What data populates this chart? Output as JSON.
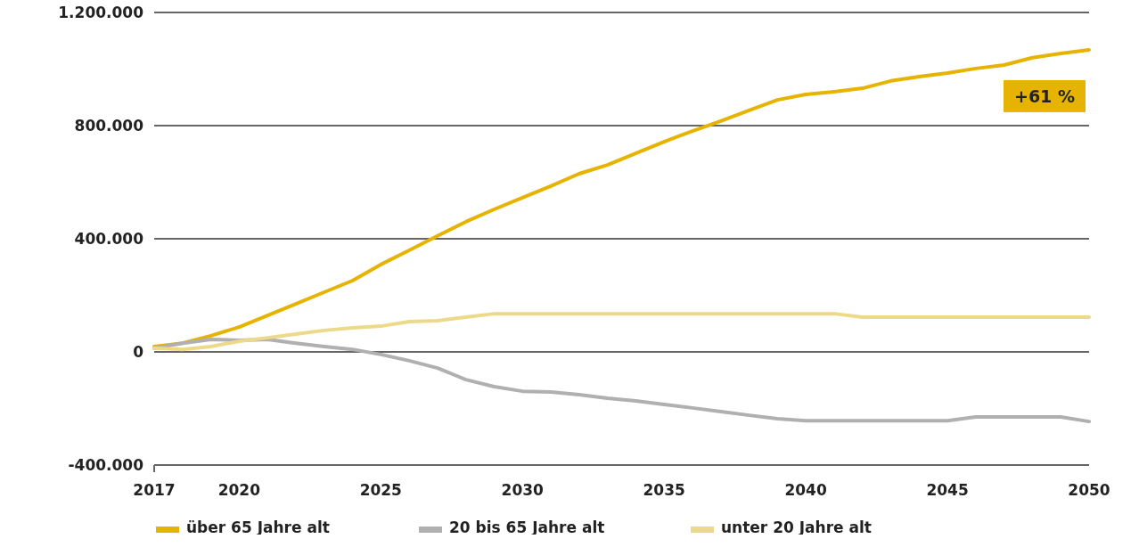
{
  "chart_data": {
    "type": "line",
    "xlim": [
      2017,
      2050
    ],
    "xticks": [
      2017,
      2020,
      2025,
      2030,
      2035,
      2040,
      2045,
      2050
    ],
    "ylim": [
      -400000,
      1200000
    ],
    "yticks": [
      {
        "value": -400000,
        "label": "-400.000"
      },
      {
        "value": 0,
        "label": "0"
      },
      {
        "value": 400000,
        "label": "400.000"
      },
      {
        "value": 800000,
        "label": "800.000"
      },
      {
        "value": 1200000,
        "label": "1.200.000"
      }
    ],
    "grid": "y",
    "legend": "bottom",
    "line_style": "solid",
    "marker": "none",
    "x": [
      2017,
      2018,
      2019,
      2020,
      2021,
      2022,
      2023,
      2024,
      2025,
      2026,
      2027,
      2028,
      2029,
      2030,
      2031,
      2032,
      2033,
      2034,
      2035,
      2036,
      2037,
      2038,
      2039,
      2040,
      2041,
      2042,
      2043,
      2044,
      2045,
      2046,
      2047,
      2048,
      2049,
      2050
    ],
    "series": [
      {
        "name": "über 65 Jahre alt",
        "color": "#e6b400",
        "values": [
          19000,
          31000,
          57000,
          88000,
          129000,
          170000,
          211000,
          252000,
          309000,
          359000,
          410000,
          460000,
          504000,
          545000,
          586000,
          630000,
          661000,
          702000,
          743000,
          781000,
          816000,
          854000,
          891000,
          910000,
          920000,
          932000,
          958000,
          973000,
          986000,
          1002000,
          1014000,
          1040000,
          1055000,
          1068000
        ]
      },
      {
        "name": "20 bis 65 Jahre alt",
        "color": "#b0b0b0",
        "values": [
          13000,
          31000,
          44000,
          41000,
          44000,
          31000,
          19000,
          9000,
          -9000,
          -31000,
          -57000,
          -98000,
          -123000,
          -139000,
          -142000,
          -151000,
          -164000,
          -173000,
          -186000,
          -198000,
          -211000,
          -224000,
          -236000,
          -243000,
          -243000,
          -243000,
          -243000,
          -243000,
          -243000,
          -230000,
          -230000,
          -230000,
          -230000,
          -246000
        ]
      },
      {
        "name": "unter 20 Jahre alt",
        "color": "#ecd98a",
        "values": [
          13000,
          9000,
          19000,
          38000,
          50000,
          63000,
          76000,
          85000,
          91000,
          107000,
          110000,
          123000,
          135000,
          135000,
          135000,
          135000,
          135000,
          135000,
          135000,
          135000,
          135000,
          135000,
          135000,
          135000,
          135000,
          123000,
          123000,
          123000,
          123000,
          123000,
          123000,
          123000,
          123000,
          123000
        ]
      }
    ],
    "annotations": [
      "+61 %"
    ]
  }
}
